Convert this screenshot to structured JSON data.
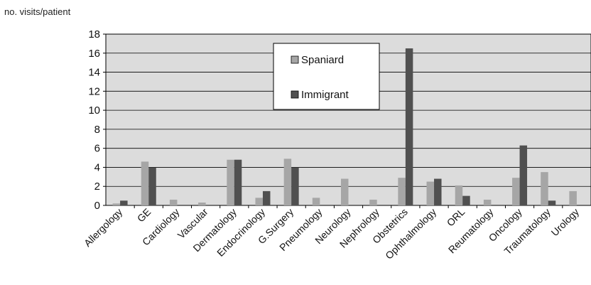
{
  "chart_data": {
    "type": "bar",
    "title": "",
    "xlabel": "",
    "ylabel": "no. visits/patient",
    "ylim": [
      0,
      18
    ],
    "yticks": [
      0,
      2,
      4,
      6,
      8,
      10,
      12,
      14,
      16,
      18
    ],
    "grid": true,
    "legend_position": "top-center",
    "categories": [
      "Allergology",
      "GE",
      "Cardiology",
      "Vascular",
      "Dermatology",
      "Endocrinology",
      "G.Surgery",
      "Pneumology",
      "Neurology",
      "Nephrology",
      "Obstetrics",
      "Ophthalmology",
      "ORL",
      "Reumatology",
      "Oncology",
      "Traumatology",
      "Urology"
    ],
    "series": [
      {
        "name": "Spaniard",
        "color": "#a6a6a6",
        "values": [
          0.2,
          4.6,
          0.6,
          0.3,
          4.8,
          0.8,
          4.9,
          0.8,
          2.8,
          0.6,
          2.9,
          2.5,
          2.1,
          0.6,
          2.9,
          3.5,
          1.5
        ]
      },
      {
        "name": "Immigrant",
        "color": "#505050",
        "values": [
          0.5,
          4.0,
          0.0,
          0.0,
          4.8,
          1.5,
          4.0,
          0.0,
          0.0,
          0.0,
          16.5,
          2.8,
          1.0,
          0.0,
          6.3,
          0.5,
          0.0
        ]
      }
    ],
    "plot_background": "#dcdcdc"
  }
}
